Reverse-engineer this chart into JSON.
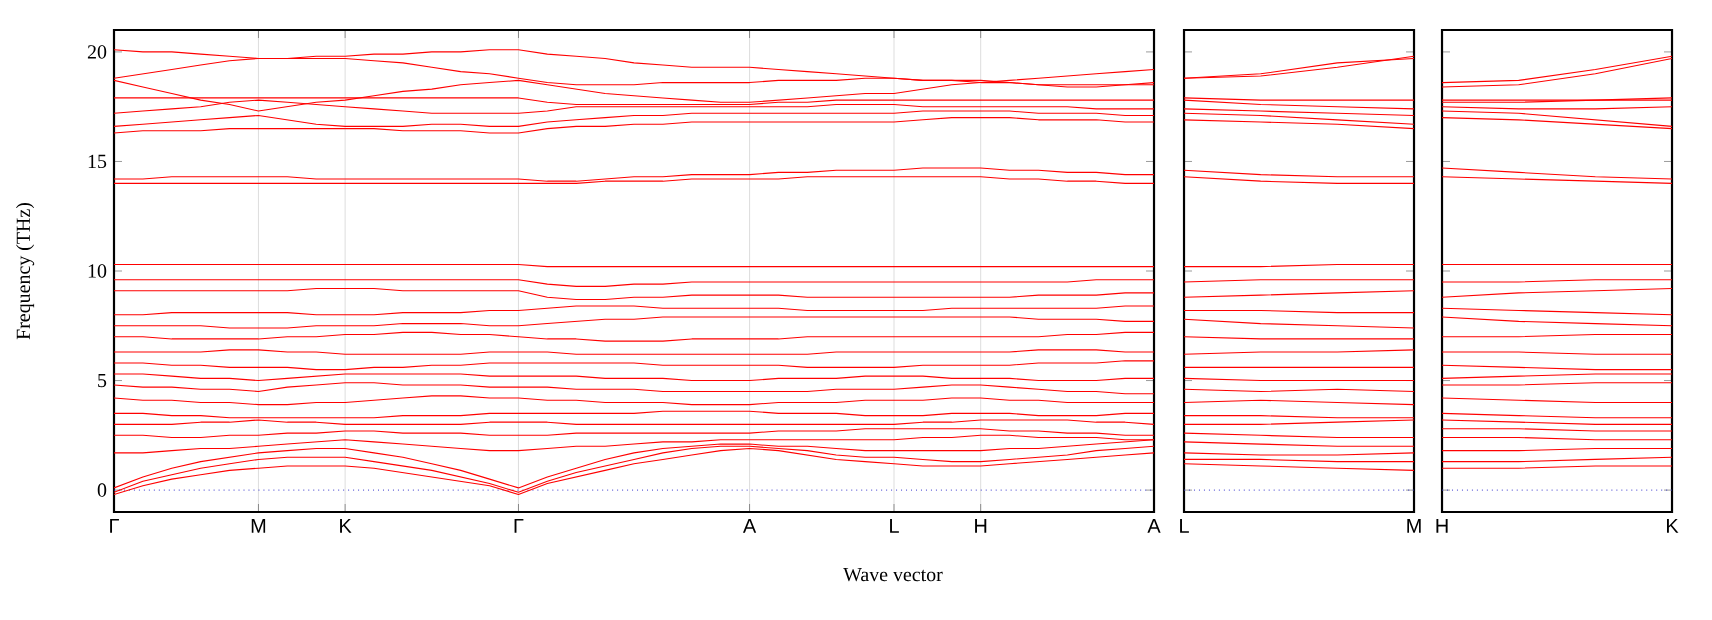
{
  "chart_data": [
    {
      "type": "line",
      "ylabel": "Frequency (THz)",
      "xlabel": "Wave vector",
      "color": "#ff0000",
      "grid": "x",
      "ylim": [
        -1,
        21
      ],
      "yticks": [
        0,
        5,
        10,
        15,
        20
      ],
      "categories": [
        "Γ",
        null,
        null,
        null,
        null,
        "M",
        null,
        null,
        "K",
        null,
        null,
        null,
        null,
        null,
        "Γ",
        null,
        null,
        null,
        null,
        null,
        null,
        null,
        "A",
        null,
        null,
        null,
        null,
        "L",
        null,
        null,
        "H",
        null,
        null,
        null,
        null,
        null,
        "A"
      ],
      "ref_lines": [
        {
          "axis": "y",
          "value": 0,
          "color": "#3333cc",
          "line_style": "dotted"
        }
      ],
      "series": [
        {
          "values": [
            -0.2,
            0.2,
            0.5,
            0.7,
            0.9,
            1.0,
            1.1,
            1.1,
            1.1,
            1.0,
            0.8,
            0.6,
            0.4,
            0.2,
            -0.2,
            0.3,
            0.6,
            0.9,
            1.2,
            1.4,
            1.6,
            1.8,
            1.9,
            1.8,
            1.6,
            1.4,
            1.3,
            1.2,
            1.1,
            1.1,
            1.1,
            1.2,
            1.3,
            1.4,
            1.5,
            1.6,
            1.7
          ]
        },
        {
          "values": [
            -0.1,
            0.4,
            0.7,
            1.0,
            1.2,
            1.4,
            1.5,
            1.5,
            1.5,
            1.3,
            1.1,
            0.9,
            0.6,
            0.3,
            -0.1,
            0.4,
            0.8,
            1.1,
            1.4,
            1.7,
            1.9,
            2.0,
            2.0,
            1.9,
            1.8,
            1.6,
            1.5,
            1.5,
            1.4,
            1.3,
            1.3,
            1.4,
            1.5,
            1.6,
            1.8,
            1.9,
            2.0
          ]
        },
        {
          "values": [
            0.1,
            0.6,
            1.0,
            1.3,
            1.5,
            1.7,
            1.8,
            1.9,
            1.9,
            1.7,
            1.5,
            1.2,
            0.9,
            0.5,
            0.1,
            0.6,
            1.0,
            1.4,
            1.7,
            1.9,
            2.0,
            2.1,
            2.1,
            2.0,
            2.0,
            1.9,
            1.8,
            1.8,
            1.8,
            1.8,
            1.8,
            1.9,
            1.9,
            2.0,
            2.1,
            2.2,
            2.3
          ]
        },
        {
          "values": [
            1.7,
            1.7,
            1.8,
            1.9,
            1.9,
            2.0,
            2.1,
            2.2,
            2.3,
            2.2,
            2.1,
            2.0,
            1.9,
            1.8,
            1.8,
            1.9,
            2.0,
            2.0,
            2.1,
            2.2,
            2.2,
            2.3,
            2.3,
            2.3,
            2.3,
            2.3,
            2.3,
            2.3,
            2.4,
            2.4,
            2.5,
            2.5,
            2.4,
            2.4,
            2.4,
            2.3,
            2.3
          ]
        },
        {
          "values": [
            2.5,
            2.5,
            2.4,
            2.4,
            2.5,
            2.5,
            2.6,
            2.6,
            2.7,
            2.7,
            2.6,
            2.6,
            2.6,
            2.5,
            2.5,
            2.5,
            2.6,
            2.6,
            2.6,
            2.6,
            2.6,
            2.6,
            2.6,
            2.7,
            2.7,
            2.7,
            2.8,
            2.8,
            2.8,
            2.8,
            2.8,
            2.7,
            2.7,
            2.6,
            2.6,
            2.5,
            2.5
          ]
        },
        {
          "values": [
            3.0,
            3.0,
            3.0,
            3.1,
            3.1,
            3.2,
            3.1,
            3.1,
            3.0,
            3.0,
            3.0,
            3.0,
            3.0,
            3.1,
            3.1,
            3.1,
            3.0,
            3.0,
            3.0,
            3.0,
            3.0,
            3.0,
            3.0,
            3.0,
            3.0,
            3.0,
            3.0,
            3.0,
            3.1,
            3.1,
            3.2,
            3.2,
            3.2,
            3.2,
            3.1,
            3.1,
            3.0
          ]
        },
        {
          "values": [
            3.5,
            3.5,
            3.4,
            3.4,
            3.3,
            3.3,
            3.3,
            3.3,
            3.3,
            3.3,
            3.4,
            3.4,
            3.4,
            3.5,
            3.5,
            3.5,
            3.5,
            3.5,
            3.5,
            3.6,
            3.6,
            3.6,
            3.6,
            3.5,
            3.5,
            3.5,
            3.4,
            3.4,
            3.4,
            3.5,
            3.5,
            3.5,
            3.4,
            3.4,
            3.4,
            3.5,
            3.5
          ]
        },
        {
          "values": [
            4.2,
            4.1,
            4.1,
            4.0,
            4.0,
            3.9,
            3.9,
            4.0,
            4.0,
            4.1,
            4.2,
            4.3,
            4.3,
            4.2,
            4.2,
            4.1,
            4.1,
            4.0,
            4.0,
            4.0,
            3.9,
            3.9,
            3.9,
            4.0,
            4.0,
            4.0,
            4.1,
            4.1,
            4.1,
            4.2,
            4.2,
            4.1,
            4.1,
            4.0,
            4.0,
            4.0,
            4.0
          ]
        },
        {
          "values": [
            4.8,
            4.7,
            4.7,
            4.6,
            4.6,
            4.5,
            4.7,
            4.8,
            4.9,
            4.9,
            4.8,
            4.8,
            4.8,
            4.7,
            4.7,
            4.7,
            4.6,
            4.6,
            4.6,
            4.5,
            4.5,
            4.5,
            4.5,
            4.5,
            4.5,
            4.6,
            4.6,
            4.6,
            4.7,
            4.8,
            4.8,
            4.7,
            4.6,
            4.5,
            4.5,
            4.4,
            4.4
          ]
        },
        {
          "values": [
            5.3,
            5.3,
            5.2,
            5.1,
            5.1,
            5.0,
            5.1,
            5.2,
            5.3,
            5.3,
            5.3,
            5.3,
            5.3,
            5.2,
            5.2,
            5.2,
            5.2,
            5.1,
            5.1,
            5.1,
            5.0,
            5.0,
            5.0,
            5.1,
            5.1,
            5.1,
            5.2,
            5.2,
            5.2,
            5.1,
            5.1,
            5.1,
            5.0,
            5.0,
            5.0,
            5.1,
            5.1
          ]
        },
        {
          "values": [
            5.8,
            5.8,
            5.7,
            5.7,
            5.6,
            5.6,
            5.6,
            5.5,
            5.5,
            5.6,
            5.6,
            5.7,
            5.7,
            5.8,
            5.8,
            5.8,
            5.8,
            5.8,
            5.8,
            5.7,
            5.7,
            5.7,
            5.7,
            5.7,
            5.6,
            5.6,
            5.6,
            5.6,
            5.7,
            5.7,
            5.7,
            5.7,
            5.8,
            5.8,
            5.8,
            5.9,
            5.9
          ]
        },
        {
          "values": [
            6.3,
            6.3,
            6.3,
            6.3,
            6.4,
            6.4,
            6.3,
            6.3,
            6.2,
            6.2,
            6.2,
            6.2,
            6.2,
            6.3,
            6.3,
            6.3,
            6.2,
            6.2,
            6.2,
            6.2,
            6.2,
            6.2,
            6.2,
            6.2,
            6.2,
            6.3,
            6.3,
            6.3,
            6.3,
            6.3,
            6.3,
            6.3,
            6.4,
            6.4,
            6.4,
            6.3,
            6.3
          ]
        },
        {
          "values": [
            7.0,
            7.0,
            6.9,
            6.9,
            6.9,
            6.9,
            7.0,
            7.0,
            7.1,
            7.1,
            7.2,
            7.2,
            7.1,
            7.1,
            7.0,
            6.9,
            6.9,
            6.8,
            6.8,
            6.8,
            6.9,
            6.9,
            6.9,
            6.9,
            7.0,
            7.0,
            7.0,
            7.0,
            7.0,
            7.0,
            7.0,
            7.0,
            7.0,
            7.1,
            7.1,
            7.2,
            7.2
          ]
        },
        {
          "values": [
            7.5,
            7.5,
            7.5,
            7.5,
            7.4,
            7.4,
            7.4,
            7.5,
            7.5,
            7.5,
            7.6,
            7.6,
            7.6,
            7.5,
            7.5,
            7.6,
            7.7,
            7.8,
            7.8,
            7.9,
            7.9,
            7.9,
            7.9,
            7.9,
            7.9,
            7.9,
            7.9,
            7.9,
            7.9,
            7.9,
            7.9,
            7.9,
            7.8,
            7.8,
            7.8,
            7.7,
            7.7
          ]
        },
        {
          "values": [
            8.0,
            8.0,
            8.1,
            8.1,
            8.1,
            8.1,
            8.1,
            8.0,
            8.0,
            8.0,
            8.1,
            8.1,
            8.1,
            8.2,
            8.2,
            8.3,
            8.4,
            8.4,
            8.4,
            8.3,
            8.3,
            8.3,
            8.3,
            8.3,
            8.2,
            8.2,
            8.2,
            8.2,
            8.2,
            8.3,
            8.3,
            8.3,
            8.3,
            8.3,
            8.3,
            8.4,
            8.4
          ]
        },
        {
          "values": [
            9.1,
            9.1,
            9.1,
            9.1,
            9.1,
            9.1,
            9.1,
            9.2,
            9.2,
            9.2,
            9.1,
            9.1,
            9.1,
            9.1,
            9.1,
            8.8,
            8.7,
            8.7,
            8.8,
            8.8,
            8.9,
            8.9,
            8.9,
            8.9,
            8.8,
            8.8,
            8.8,
            8.8,
            8.8,
            8.8,
            8.8,
            8.8,
            8.9,
            8.9,
            8.9,
            9.0,
            9.0
          ]
        },
        {
          "values": [
            9.6,
            9.6,
            9.6,
            9.6,
            9.6,
            9.6,
            9.6,
            9.6,
            9.6,
            9.6,
            9.6,
            9.6,
            9.6,
            9.6,
            9.6,
            9.4,
            9.3,
            9.3,
            9.4,
            9.4,
            9.5,
            9.5,
            9.5,
            9.5,
            9.5,
            9.5,
            9.5,
            9.5,
            9.5,
            9.5,
            9.5,
            9.5,
            9.5,
            9.5,
            9.6,
            9.6,
            9.6
          ]
        },
        {
          "values": [
            10.3,
            10.3,
            10.3,
            10.3,
            10.3,
            10.3,
            10.3,
            10.3,
            10.3,
            10.3,
            10.3,
            10.3,
            10.3,
            10.3,
            10.3,
            10.2,
            10.2,
            10.2,
            10.2,
            10.2,
            10.2,
            10.2,
            10.2,
            10.2,
            10.2,
            10.2,
            10.2,
            10.2,
            10.2,
            10.2,
            10.2,
            10.2,
            10.2,
            10.2,
            10.2,
            10.2,
            10.2
          ]
        },
        {
          "values": [
            14.0,
            14.0,
            14.0,
            14.0,
            14.0,
            14.0,
            14.0,
            14.0,
            14.0,
            14.0,
            14.0,
            14.0,
            14.0,
            14.0,
            14.0,
            14.0,
            14.0,
            14.1,
            14.1,
            14.1,
            14.2,
            14.2,
            14.2,
            14.2,
            14.3,
            14.3,
            14.3,
            14.3,
            14.3,
            14.3,
            14.3,
            14.2,
            14.2,
            14.1,
            14.1,
            14.0,
            14.0
          ]
        },
        {
          "values": [
            14.2,
            14.2,
            14.3,
            14.3,
            14.3,
            14.3,
            14.3,
            14.2,
            14.2,
            14.2,
            14.2,
            14.2,
            14.2,
            14.2,
            14.2,
            14.1,
            14.1,
            14.2,
            14.3,
            14.3,
            14.4,
            14.4,
            14.4,
            14.5,
            14.5,
            14.6,
            14.6,
            14.6,
            14.7,
            14.7,
            14.7,
            14.6,
            14.6,
            14.5,
            14.5,
            14.4,
            14.4
          ]
        },
        {
          "values": [
            16.3,
            16.4,
            16.4,
            16.4,
            16.5,
            16.5,
            16.5,
            16.5,
            16.5,
            16.5,
            16.4,
            16.4,
            16.4,
            16.3,
            16.3,
            16.5,
            16.6,
            16.6,
            16.7,
            16.7,
            16.8,
            16.8,
            16.8,
            16.8,
            16.8,
            16.8,
            16.8,
            16.8,
            16.9,
            17.0,
            17.0,
            17.0,
            16.9,
            16.9,
            16.9,
            16.8,
            16.8
          ]
        },
        {
          "values": [
            16.6,
            16.7,
            16.8,
            16.9,
            17.0,
            17.1,
            16.9,
            16.7,
            16.6,
            16.6,
            16.6,
            16.7,
            16.7,
            16.6,
            16.6,
            16.8,
            16.9,
            17.0,
            17.1,
            17.1,
            17.2,
            17.2,
            17.2,
            17.2,
            17.2,
            17.2,
            17.2,
            17.2,
            17.3,
            17.3,
            17.3,
            17.3,
            17.2,
            17.2,
            17.2,
            17.1,
            17.1
          ]
        },
        {
          "values": [
            17.2,
            17.3,
            17.4,
            17.5,
            17.7,
            17.8,
            17.7,
            17.6,
            17.5,
            17.4,
            17.3,
            17.2,
            17.2,
            17.2,
            17.2,
            17.3,
            17.5,
            17.5,
            17.5,
            17.5,
            17.5,
            17.5,
            17.5,
            17.5,
            17.5,
            17.6,
            17.6,
            17.6,
            17.5,
            17.5,
            17.5,
            17.5,
            17.5,
            17.5,
            17.4,
            17.4,
            17.4
          ]
        },
        {
          "values": [
            17.9,
            17.9,
            17.9,
            17.9,
            17.9,
            17.9,
            17.9,
            17.9,
            17.9,
            17.9,
            17.9,
            17.9,
            17.9,
            17.9,
            17.9,
            17.7,
            17.6,
            17.6,
            17.6,
            17.6,
            17.6,
            17.6,
            17.6,
            17.7,
            17.7,
            17.8,
            17.8,
            17.8,
            17.8,
            17.8,
            17.8,
            17.8,
            17.8,
            17.8,
            17.8,
            17.8,
            17.8
          ]
        },
        {
          "values": [
            18.7,
            18.4,
            18.1,
            17.8,
            17.6,
            17.3,
            17.5,
            17.7,
            17.8,
            18.0,
            18.2,
            18.3,
            18.5,
            18.6,
            18.7,
            18.5,
            18.3,
            18.1,
            18.0,
            17.9,
            17.8,
            17.7,
            17.7,
            17.8,
            17.9,
            18.0,
            18.1,
            18.1,
            18.3,
            18.5,
            18.6,
            18.7,
            18.8,
            18.9,
            19.0,
            19.1,
            19.2
          ]
        },
        {
          "values": [
            18.8,
            19.0,
            19.2,
            19.4,
            19.6,
            19.7,
            19.7,
            19.7,
            19.7,
            19.6,
            19.5,
            19.3,
            19.1,
            19.0,
            18.8,
            18.6,
            18.5,
            18.5,
            18.5,
            18.6,
            18.6,
            18.6,
            18.6,
            18.7,
            18.7,
            18.7,
            18.8,
            18.8,
            18.7,
            18.7,
            18.7,
            18.6,
            18.5,
            18.4,
            18.4,
            18.5,
            18.6
          ]
        },
        {
          "values": [
            20.1,
            20.0,
            20.0,
            19.9,
            19.8,
            19.7,
            19.7,
            19.8,
            19.8,
            19.9,
            19.9,
            20.0,
            20.0,
            20.1,
            20.1,
            19.9,
            19.8,
            19.7,
            19.5,
            19.4,
            19.3,
            19.3,
            19.3,
            19.2,
            19.1,
            19.0,
            18.9,
            18.8,
            18.7,
            18.7,
            18.6,
            18.6,
            18.5,
            18.5,
            18.5,
            18.5,
            18.5
          ]
        }
      ]
    },
    {
      "type": "line",
      "color": "#ff0000",
      "tick_labels": "x",
      "ylim": [
        -1,
        21
      ],
      "yticks": [
        0,
        5,
        10,
        15,
        20
      ],
      "categories": [
        "L",
        null,
        null,
        "M"
      ],
      "ref_lines": [
        {
          "axis": "y",
          "value": 0,
          "color": "#3333cc",
          "line_style": "dotted"
        }
      ],
      "series": [
        {
          "values": [
            1.2,
            1.1,
            1.0,
            0.9
          ]
        },
        {
          "values": [
            1.4,
            1.4,
            1.3,
            1.3
          ]
        },
        {
          "values": [
            1.7,
            1.6,
            1.6,
            1.7
          ]
        },
        {
          "values": [
            2.2,
            2.1,
            2.0,
            2.0
          ]
        },
        {
          "values": [
            2.6,
            2.5,
            2.4,
            2.4
          ]
        },
        {
          "values": [
            3.0,
            3.0,
            3.1,
            3.2
          ]
        },
        {
          "values": [
            3.4,
            3.4,
            3.3,
            3.3
          ]
        },
        {
          "values": [
            4.0,
            4.1,
            4.0,
            3.9
          ]
        },
        {
          "values": [
            4.6,
            4.5,
            4.6,
            4.5
          ]
        },
        {
          "values": [
            5.1,
            5.0,
            5.0,
            5.0
          ]
        },
        {
          "values": [
            5.6,
            5.6,
            5.6,
            5.6
          ]
        },
        {
          "values": [
            6.2,
            6.3,
            6.3,
            6.4
          ]
        },
        {
          "values": [
            7.0,
            6.9,
            6.9,
            6.9
          ]
        },
        {
          "values": [
            7.8,
            7.6,
            7.5,
            7.4
          ]
        },
        {
          "values": [
            8.2,
            8.2,
            8.1,
            8.1
          ]
        },
        {
          "values": [
            8.8,
            8.9,
            9.0,
            9.1
          ]
        },
        {
          "values": [
            9.5,
            9.6,
            9.6,
            9.6
          ]
        },
        {
          "values": [
            10.2,
            10.2,
            10.3,
            10.3
          ]
        },
        {
          "values": [
            14.3,
            14.1,
            14.0,
            14.0
          ]
        },
        {
          "values": [
            14.6,
            14.4,
            14.3,
            14.3
          ]
        },
        {
          "values": [
            16.9,
            16.8,
            16.7,
            16.5
          ]
        },
        {
          "values": [
            17.2,
            17.1,
            16.9,
            16.7
          ]
        },
        {
          "values": [
            17.4,
            17.3,
            17.2,
            17.1
          ]
        },
        {
          "values": [
            17.8,
            17.6,
            17.5,
            17.4
          ]
        },
        {
          "values": [
            17.9,
            17.8,
            17.8,
            17.8
          ]
        },
        {
          "values": [
            18.8,
            19.0,
            19.5,
            19.7
          ]
        },
        {
          "values": [
            18.8,
            18.9,
            19.3,
            19.8
          ]
        }
      ]
    },
    {
      "type": "line",
      "color": "#ff0000",
      "tick_labels": "x",
      "ylim": [
        -1,
        21
      ],
      "yticks": [
        0,
        5,
        10,
        15,
        20
      ],
      "categories": [
        "H",
        null,
        null,
        "K"
      ],
      "ref_lines": [
        {
          "axis": "y",
          "value": 0,
          "color": "#3333cc",
          "line_style": "dotted"
        }
      ],
      "series": [
        {
          "values": [
            1.0,
            1.0,
            1.1,
            1.1
          ]
        },
        {
          "values": [
            1.3,
            1.3,
            1.4,
            1.5
          ]
        },
        {
          "values": [
            1.8,
            1.8,
            1.9,
            1.9
          ]
        },
        {
          "values": [
            2.4,
            2.4,
            2.3,
            2.3
          ]
        },
        {
          "values": [
            2.8,
            2.8,
            2.7,
            2.7
          ]
        },
        {
          "values": [
            3.2,
            3.1,
            3.0,
            3.0
          ]
        },
        {
          "values": [
            3.5,
            3.4,
            3.3,
            3.3
          ]
        },
        {
          "values": [
            4.2,
            4.1,
            4.0,
            4.0
          ]
        },
        {
          "values": [
            4.8,
            4.8,
            4.9,
            4.9
          ]
        },
        {
          "values": [
            5.1,
            5.2,
            5.3,
            5.3
          ]
        },
        {
          "values": [
            5.7,
            5.6,
            5.5,
            5.5
          ]
        },
        {
          "values": [
            6.3,
            6.3,
            6.2,
            6.2
          ]
        },
        {
          "values": [
            7.0,
            7.0,
            7.1,
            7.1
          ]
        },
        {
          "values": [
            7.9,
            7.7,
            7.6,
            7.5
          ]
        },
        {
          "values": [
            8.3,
            8.2,
            8.1,
            8.0
          ]
        },
        {
          "values": [
            8.8,
            9.0,
            9.1,
            9.2
          ]
        },
        {
          "values": [
            9.5,
            9.5,
            9.6,
            9.6
          ]
        },
        {
          "values": [
            10.3,
            10.3,
            10.3,
            10.3
          ]
        },
        {
          "values": [
            14.3,
            14.2,
            14.1,
            14.0
          ]
        },
        {
          "values": [
            14.7,
            14.5,
            14.3,
            14.2
          ]
        },
        {
          "values": [
            17.0,
            16.9,
            16.7,
            16.5
          ]
        },
        {
          "values": [
            17.3,
            17.2,
            16.9,
            16.6
          ]
        },
        {
          "values": [
            17.5,
            17.4,
            17.4,
            17.5
          ]
        },
        {
          "values": [
            17.7,
            17.7,
            17.8,
            17.8
          ]
        },
        {
          "values": [
            17.8,
            17.8,
            17.8,
            17.9
          ]
        },
        {
          "values": [
            18.4,
            18.5,
            19.0,
            19.7
          ]
        },
        {
          "values": [
            18.6,
            18.7,
            19.2,
            19.8
          ]
        }
      ]
    }
  ]
}
